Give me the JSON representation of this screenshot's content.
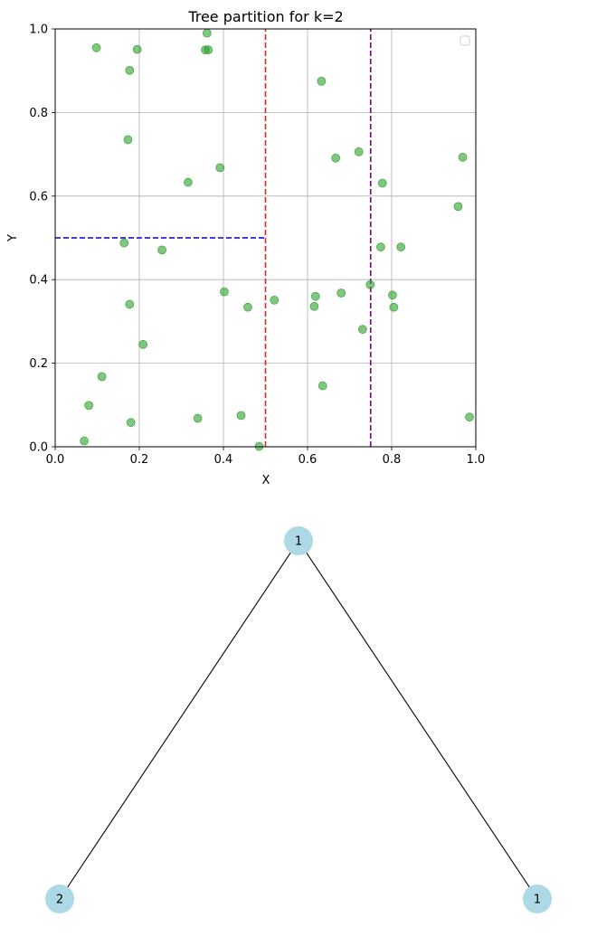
{
  "chart_data": [
    {
      "type": "scatter",
      "title": "Tree partition for k=2",
      "xlabel": "X",
      "ylabel": "Y",
      "xlim": [
        0.0,
        1.0
      ],
      "ylim": [
        0.0,
        1.0
      ],
      "xticks": [
        "0.0",
        "0.2",
        "0.4",
        "0.6",
        "0.8",
        "1.0"
      ],
      "yticks": [
        "0.0",
        "0.2",
        "0.4",
        "0.6",
        "0.8",
        "1.0"
      ],
      "grid": true,
      "legend": "top-right (empty)",
      "point_color": "#2ca02c",
      "points": [
        [
          0.098,
          0.955
        ],
        [
          0.195,
          0.951
        ],
        [
          0.177,
          0.901
        ],
        [
          0.361,
          0.99
        ],
        [
          0.357,
          0.95
        ],
        [
          0.364,
          0.95
        ],
        [
          0.633,
          0.875
        ],
        [
          0.173,
          0.735
        ],
        [
          0.392,
          0.668
        ],
        [
          0.316,
          0.633
        ],
        [
          0.667,
          0.691
        ],
        [
          0.722,
          0.706
        ],
        [
          0.778,
          0.631
        ],
        [
          0.969,
          0.693
        ],
        [
          0.958,
          0.575
        ],
        [
          0.164,
          0.488
        ],
        [
          0.254,
          0.471
        ],
        [
          0.774,
          0.478
        ],
        [
          0.822,
          0.478
        ],
        [
          0.402,
          0.371
        ],
        [
          0.521,
          0.351
        ],
        [
          0.619,
          0.36
        ],
        [
          0.68,
          0.368
        ],
        [
          0.749,
          0.388
        ],
        [
          0.802,
          0.363
        ],
        [
          0.177,
          0.341
        ],
        [
          0.458,
          0.334
        ],
        [
          0.616,
          0.336
        ],
        [
          0.805,
          0.334
        ],
        [
          0.731,
          0.281
        ],
        [
          0.209,
          0.245
        ],
        [
          0.111,
          0.168
        ],
        [
          0.636,
          0.146
        ],
        [
          0.08,
          0.099
        ],
        [
          0.18,
          0.058
        ],
        [
          0.339,
          0.068
        ],
        [
          0.442,
          0.075
        ],
        [
          0.069,
          0.014
        ],
        [
          0.485,
          0.001
        ],
        [
          0.985,
          0.071
        ]
      ],
      "partition_lines": [
        {
          "orientation": "vertical",
          "at": 0.5,
          "from": 0.0,
          "to": 1.0,
          "color": "#d62728"
        },
        {
          "orientation": "vertical",
          "at": 0.75,
          "from": 0.0,
          "to": 1.0,
          "color": "#800080"
        },
        {
          "orientation": "horizontal",
          "at": 0.5,
          "from": 0.0,
          "to": 0.5,
          "color": "#0000cc"
        }
      ]
    },
    {
      "type": "tree",
      "node_color": "#add8e6",
      "nodes": [
        {
          "id": "root",
          "label": "1"
        },
        {
          "id": "left",
          "label": "2"
        },
        {
          "id": "right",
          "label": "1"
        }
      ],
      "edges": [
        [
          "root",
          "left"
        ],
        [
          "root",
          "right"
        ]
      ]
    }
  ]
}
